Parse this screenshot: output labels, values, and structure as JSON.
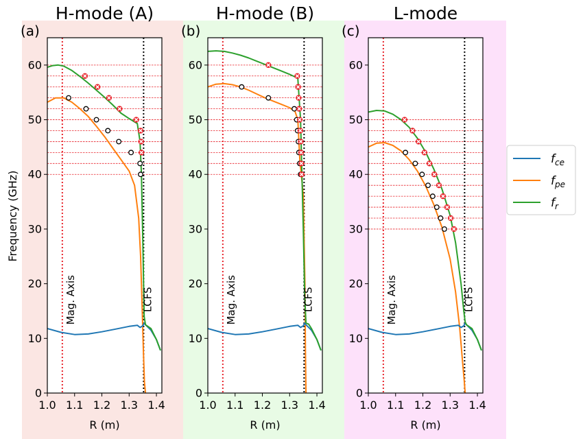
{
  "figure": {
    "ylabel": "Frequency (GHz)",
    "legend": {
      "placement": "right",
      "entries": [
        {
          "base": "f",
          "sub": "ce",
          "color": "#1f77b4"
        },
        {
          "base": "f",
          "sub": "pe",
          "color": "#ff7f0e"
        },
        {
          "base": "f",
          "sub": "r",
          "color": "#2ca02c"
        }
      ]
    },
    "colors": {
      "fce": "#1f77b4",
      "fpe": "#ff7f0e",
      "fr": "#2ca02c",
      "marker_x": "#e8232b",
      "ref_red": "#e8232b",
      "ref_black": "#000000"
    }
  },
  "chart_data": [
    {
      "type": "line",
      "title": "H-mode (A)",
      "label": "(a)",
      "background": "#fbe6e3",
      "xlabel": "R (m)",
      "ylabel": "Frequency (GHz)",
      "xlim": [
        1.0,
        1.42
      ],
      "ylim": [
        0,
        65
      ],
      "xticks": [
        "1.0",
        "1.1",
        "1.2",
        "1.3",
        "1.4"
      ],
      "yticks": [
        "0",
        "10",
        "20",
        "30",
        "40",
        "50",
        "60"
      ],
      "mag_axis_r": 1.055,
      "mag_axis_label": "Mag. Axis",
      "lcfs_r": 1.353,
      "lcfs_label": "LCFS",
      "hlines": [
        40,
        42,
        44,
        46,
        48,
        50,
        52,
        54,
        56,
        58,
        60
      ],
      "series": {
        "fce": {
          "x": [
            1.0,
            1.05,
            1.1,
            1.15,
            1.2,
            1.25,
            1.3,
            1.33,
            1.34,
            1.35,
            1.355,
            1.36,
            1.38,
            1.4,
            1.415
          ],
          "y": [
            11.8,
            11.1,
            10.7,
            10.8,
            11.2,
            11.7,
            12.2,
            12.4,
            12.0,
            12.3,
            12.8,
            12.5,
            11.5,
            9.8,
            7.8
          ]
        },
        "fpe": {
          "x": [
            1.0,
            1.03,
            1.06,
            1.09,
            1.12,
            1.15,
            1.18,
            1.21,
            1.24,
            1.27,
            1.3,
            1.32,
            1.335,
            1.342,
            1.348,
            1.352,
            1.356,
            1.36
          ],
          "y": [
            53.2,
            54.0,
            54.0,
            53.2,
            52.0,
            50.6,
            48.8,
            46.9,
            44.8,
            42.7,
            40.6,
            38.0,
            32.0,
            25.0,
            15.0,
            8.0,
            2.0,
            0.0
          ]
        },
        "fr": {
          "x": [
            1.0,
            1.02,
            1.04,
            1.06,
            1.09,
            1.12,
            1.15,
            1.18,
            1.21,
            1.24,
            1.27,
            1.3,
            1.33,
            1.34,
            1.345,
            1.35,
            1.355,
            1.36,
            1.38,
            1.4,
            1.415
          ],
          "y": [
            59.6,
            59.9,
            60.0,
            59.8,
            59.0,
            57.9,
            56.7,
            55.4,
            54.1,
            52.7,
            51.2,
            50.2,
            49.3,
            46.0,
            40.0,
            28.0,
            14.0,
            12.5,
            11.8,
            9.8,
            7.8
          ]
        }
      },
      "x_markers": [
        {
          "x": 1.138,
          "y": 58
        },
        {
          "x": 1.184,
          "y": 56
        },
        {
          "x": 1.226,
          "y": 54
        },
        {
          "x": 1.265,
          "y": 52
        },
        {
          "x": 1.326,
          "y": 50
        },
        {
          "x": 1.342,
          "y": 48
        },
        {
          "x": 1.344,
          "y": 46
        },
        {
          "x": 1.345,
          "y": 44
        }
      ],
      "o_markers": [
        {
          "x": 1.078,
          "y": 54
        },
        {
          "x": 1.142,
          "y": 52
        },
        {
          "x": 1.18,
          "y": 50
        },
        {
          "x": 1.222,
          "y": 48
        },
        {
          "x": 1.262,
          "y": 46
        },
        {
          "x": 1.307,
          "y": 44
        },
        {
          "x": 1.34,
          "y": 42
        },
        {
          "x": 1.342,
          "y": 40
        }
      ]
    },
    {
      "type": "line",
      "title": "H-mode (B)",
      "label": "(b)",
      "background": "#e8fbe5",
      "xlabel": "R (m)",
      "ylabel": "",
      "xlim": [
        1.0,
        1.42
      ],
      "ylim": [
        0,
        65
      ],
      "xticks": [
        "1.0",
        "1.1",
        "1.2",
        "1.3",
        "1.4"
      ],
      "yticks": [
        "0",
        "10",
        "20",
        "30",
        "40",
        "50",
        "60"
      ],
      "mag_axis_r": 1.055,
      "mag_axis_label": "Mag. Axis",
      "lcfs_r": 1.353,
      "lcfs_label": "LCFS",
      "hlines": [
        40,
        42,
        44,
        46,
        48,
        50,
        52,
        54,
        56,
        58,
        60
      ],
      "series": {
        "fce": {
          "x": [
            1.0,
            1.05,
            1.1,
            1.15,
            1.2,
            1.25,
            1.3,
            1.33,
            1.34,
            1.35,
            1.355,
            1.36,
            1.38,
            1.4,
            1.415
          ],
          "y": [
            11.8,
            11.1,
            10.7,
            10.8,
            11.2,
            11.7,
            12.2,
            12.4,
            12.0,
            12.3,
            12.8,
            12.5,
            11.5,
            9.8,
            7.8
          ]
        },
        "fpe": {
          "x": [
            1.0,
            1.03,
            1.06,
            1.09,
            1.12,
            1.15,
            1.18,
            1.21,
            1.24,
            1.27,
            1.3,
            1.32,
            1.33,
            1.335,
            1.338,
            1.342,
            1.35,
            1.356,
            1.358,
            1.36
          ],
          "y": [
            56.0,
            56.5,
            56.6,
            56.4,
            56.0,
            55.4,
            54.7,
            54.0,
            53.4,
            52.8,
            52.2,
            51.5,
            50.0,
            45.0,
            42.0,
            40.5,
            36.0,
            20.0,
            8.0,
            0.0
          ]
        },
        "fr": {
          "x": [
            1.0,
            1.03,
            1.06,
            1.09,
            1.12,
            1.15,
            1.18,
            1.21,
            1.24,
            1.27,
            1.3,
            1.33,
            1.34,
            1.345,
            1.35,
            1.355,
            1.36,
            1.37,
            1.38,
            1.4,
            1.415
          ],
          "y": [
            62.5,
            62.6,
            62.5,
            62.2,
            61.8,
            61.3,
            60.7,
            60.1,
            59.5,
            58.9,
            58.3,
            57.6,
            50.0,
            40.0,
            30.0,
            18.0,
            12.8,
            12.6,
            11.8,
            9.8,
            7.8
          ]
        }
      },
      "x_markers": [
        {
          "x": 1.222,
          "y": 60
        },
        {
          "x": 1.328,
          "y": 58
        },
        {
          "x": 1.331,
          "y": 56
        },
        {
          "x": 1.333,
          "y": 54
        },
        {
          "x": 1.335,
          "y": 52
        },
        {
          "x": 1.337,
          "y": 50
        },
        {
          "x": 1.339,
          "y": 48
        },
        {
          "x": 1.341,
          "y": 46
        },
        {
          "x": 1.342,
          "y": 44
        },
        {
          "x": 1.343,
          "y": 42
        },
        {
          "x": 1.344,
          "y": 40
        }
      ],
      "o_markers": [
        {
          "x": 1.124,
          "y": 56
        },
        {
          "x": 1.222,
          "y": 54
        },
        {
          "x": 1.317,
          "y": 52
        },
        {
          "x": 1.326,
          "y": 50
        },
        {
          "x": 1.329,
          "y": 48
        },
        {
          "x": 1.332,
          "y": 46
        },
        {
          "x": 1.334,
          "y": 44
        },
        {
          "x": 1.337,
          "y": 42
        },
        {
          "x": 1.34,
          "y": 40
        }
      ]
    },
    {
      "type": "line",
      "title": "L-mode",
      "label": "(c)",
      "background": "#fde1fa",
      "xlabel": "R (m)",
      "ylabel": "",
      "xlim": [
        1.0,
        1.42
      ],
      "ylim": [
        0,
        65
      ],
      "xticks": [
        "1.0",
        "1.1",
        "1.2",
        "1.3",
        "1.4"
      ],
      "yticks": [
        "0",
        "10",
        "20",
        "30",
        "40",
        "50",
        "60"
      ],
      "mag_axis_r": 1.055,
      "mag_axis_label": "Mag. Axis",
      "lcfs_r": 1.353,
      "lcfs_label": "LCFS",
      "hlines": [
        30,
        32,
        34,
        36,
        38,
        40,
        42,
        44,
        46,
        48,
        50
      ],
      "series": {
        "fce": {
          "x": [
            1.0,
            1.05,
            1.1,
            1.15,
            1.2,
            1.25,
            1.3,
            1.33,
            1.34,
            1.35,
            1.355,
            1.36,
            1.38,
            1.4,
            1.415
          ],
          "y": [
            11.8,
            11.1,
            10.7,
            10.8,
            11.2,
            11.7,
            12.2,
            12.4,
            12.0,
            12.3,
            12.8,
            12.5,
            11.5,
            9.8,
            7.8
          ]
        },
        "fpe": {
          "x": [
            1.0,
            1.03,
            1.06,
            1.09,
            1.12,
            1.15,
            1.18,
            1.21,
            1.24,
            1.27,
            1.3,
            1.32,
            1.335,
            1.345,
            1.352,
            1.355
          ],
          "y": [
            45.0,
            45.7,
            45.8,
            45.3,
            44.3,
            42.7,
            40.6,
            37.9,
            34.5,
            30.3,
            24.5,
            18.5,
            12.0,
            6.0,
            2.0,
            0.0
          ]
        },
        "fr": {
          "x": [
            1.0,
            1.03,
            1.06,
            1.09,
            1.12,
            1.15,
            1.18,
            1.21,
            1.24,
            1.27,
            1.3,
            1.32,
            1.34,
            1.35,
            1.355,
            1.36,
            1.38,
            1.4,
            1.415
          ],
          "y": [
            51.4,
            51.7,
            51.6,
            51.0,
            50.0,
            48.6,
            46.6,
            44.1,
            41.0,
            37.3,
            32.5,
            27.5,
            20.0,
            15.0,
            13.0,
            12.5,
            11.8,
            9.8,
            7.8
          ]
        }
      },
      "x_markers": [
        {
          "x": 1.133,
          "y": 50
        },
        {
          "x": 1.162,
          "y": 48
        },
        {
          "x": 1.184,
          "y": 46
        },
        {
          "x": 1.206,
          "y": 44
        },
        {
          "x": 1.224,
          "y": 42
        },
        {
          "x": 1.242,
          "y": 40
        },
        {
          "x": 1.259,
          "y": 38
        },
        {
          "x": 1.274,
          "y": 36
        },
        {
          "x": 1.289,
          "y": 34
        },
        {
          "x": 1.302,
          "y": 32
        },
        {
          "x": 1.314,
          "y": 30
        }
      ],
      "o_markers": [
        {
          "x": 1.136,
          "y": 44
        },
        {
          "x": 1.172,
          "y": 42
        },
        {
          "x": 1.197,
          "y": 40
        },
        {
          "x": 1.219,
          "y": 38
        },
        {
          "x": 1.236,
          "y": 36
        },
        {
          "x": 1.251,
          "y": 34
        },
        {
          "x": 1.265,
          "y": 32
        },
        {
          "x": 1.279,
          "y": 30
        }
      ]
    }
  ]
}
